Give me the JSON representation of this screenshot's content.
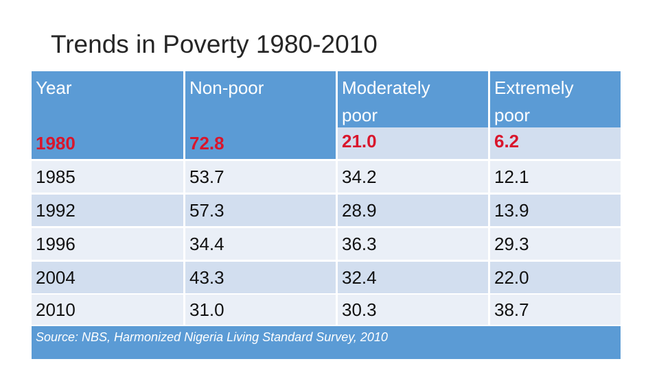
{
  "title": "Trends in Poverty 1980-2010",
  "table": {
    "headers": [
      [
        "Year"
      ],
      [
        "Non-poor"
      ],
      [
        "Moderately",
        "poor"
      ],
      [
        "Extremely",
        "poor"
      ]
    ],
    "rows": [
      [
        "1980",
        "72.8",
        "21.0",
        "6.2"
      ],
      [
        "1985",
        "53.7",
        "34.2",
        "12.1"
      ],
      [
        "1992",
        "57.3",
        "28.9",
        "13.9"
      ],
      [
        "1996",
        "34.4",
        "36.3",
        "29.3"
      ],
      [
        "2004",
        "43.3",
        "32.4",
        "22.0"
      ],
      [
        "2010",
        "31.0",
        "30.3",
        "38.7"
      ]
    ],
    "source": "Source: NBS, Harmonized Nigeria Living Standard Survey, 2010"
  },
  "colors": {
    "header_bg": "#5b9bd5",
    "band_bg": "#d2deef",
    "plain_bg": "#eaeff7",
    "highlight_text": "#d9162c"
  }
}
